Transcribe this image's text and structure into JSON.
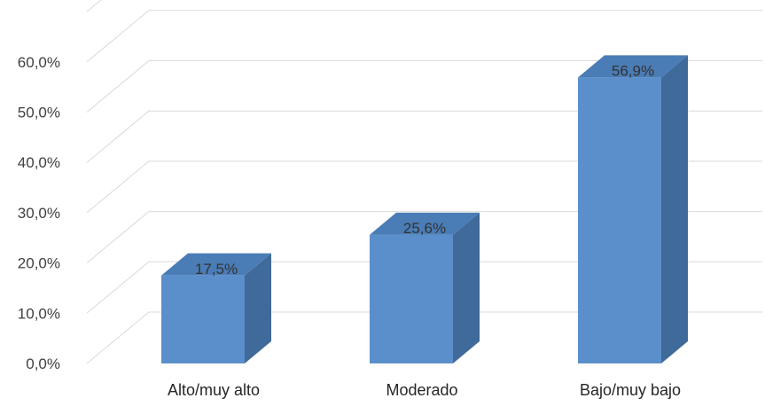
{
  "chart_data": {
    "type": "bar",
    "style": "3d-column",
    "categories": [
      "Alto/muy alto",
      "Moderado",
      "Bajo/muy bajo"
    ],
    "values": [
      17.5,
      25.6,
      56.9
    ],
    "data_labels": [
      "17,5%",
      "25,6%",
      "56,9%"
    ],
    "y_tick_labels": [
      "0,0%",
      "10,0%",
      "20,0%",
      "30,0%",
      "40,0%",
      "50,0%",
      "60,0%"
    ],
    "ylim": [
      0,
      60
    ],
    "y_step": 10,
    "grid": true,
    "legend": "none",
    "colors": {
      "bar_front": "#5b8fcb",
      "bar_side": "#3f6a99",
      "bar_top": "#4a7cb5",
      "grid": "#d9d9d9"
    }
  }
}
